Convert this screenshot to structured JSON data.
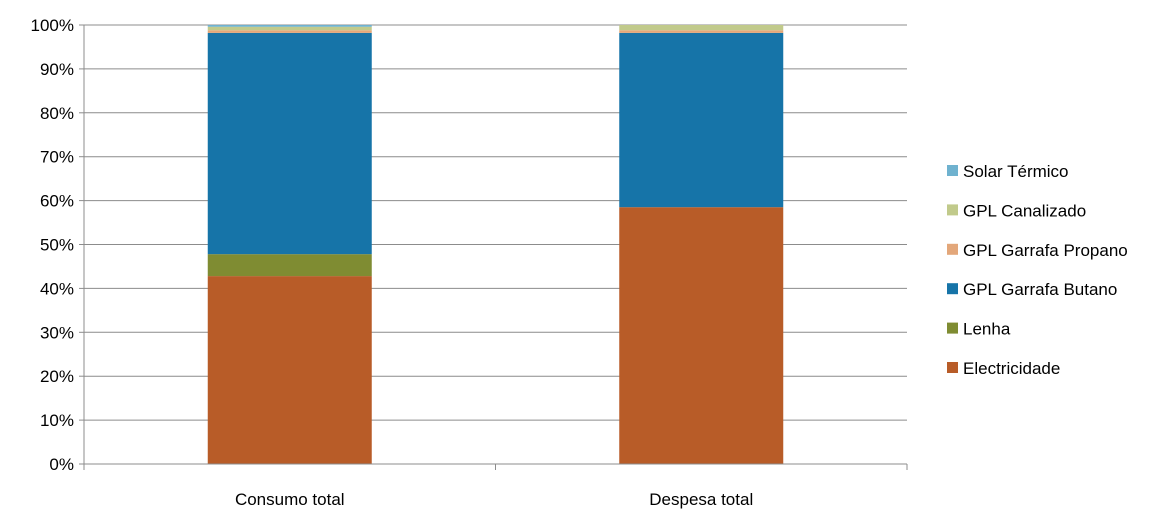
{
  "chart_data": {
    "type": "bar",
    "stacked": true,
    "percent_stacked": true,
    "categories": [
      "Consumo total",
      "Despesa total"
    ],
    "series": [
      {
        "name": "Electricidade",
        "values": [
          42.8,
          58.5
        ],
        "color": "#b85c28"
      },
      {
        "name": "Lenha",
        "values": [
          5.0,
          0.0
        ],
        "color": "#7f8c32"
      },
      {
        "name": "GPL Garrafa Butano",
        "values": [
          50.4,
          39.7
        ],
        "color": "#1674a8"
      },
      {
        "name": "GPL Garrafa Propano",
        "values": [
          0.6,
          0.6
        ],
        "color": "#e3a77a"
      },
      {
        "name": "GPL Canalizado",
        "values": [
          0.8,
          1.2
        ],
        "color": "#c1ca8b"
      },
      {
        "name": "Solar Térmico",
        "values": [
          0.4,
          0.0
        ],
        "color": "#6fb2cf"
      }
    ],
    "y_ticks": [
      "0%",
      "10%",
      "20%",
      "30%",
      "40%",
      "50%",
      "60%",
      "70%",
      "80%",
      "90%",
      "100%"
    ],
    "ylim": [
      0,
      100
    ],
    "grid": true,
    "legend_position": "right",
    "legend_order": [
      "Solar Térmico",
      "GPL Canalizado",
      "GPL Garrafa Propano",
      "GPL Garrafa Butano",
      "Lenha",
      "Electricidade"
    ]
  }
}
